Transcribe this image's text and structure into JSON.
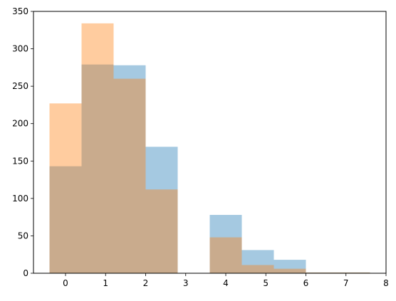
{
  "chart_data": {
    "type": "bar",
    "subtype": "overlaid-histogram",
    "title": "",
    "xlabel": "",
    "ylabel": "",
    "xlim": [
      -0.8,
      8
    ],
    "ylim": [
      0,
      350
    ],
    "xticks": [
      0,
      1,
      2,
      3,
      4,
      5,
      6,
      7,
      8
    ],
    "yticks": [
      0,
      50,
      100,
      150,
      200,
      250,
      300,
      350
    ],
    "grid": false,
    "legend": "none",
    "series": [
      {
        "color": "#1f77b4",
        "alpha": 0.4,
        "bins": [
          {
            "x0": -0.4,
            "x1": 0.4,
            "value": 143
          },
          {
            "x0": 0.4,
            "x1": 1.2,
            "value": 279
          },
          {
            "x0": 1.2,
            "x1": 2.0,
            "value": 278
          },
          {
            "x0": 2.0,
            "x1": 2.8,
            "value": 169
          },
          {
            "x0": 2.8,
            "x1": 3.6,
            "value": 0
          },
          {
            "x0": 3.6,
            "x1": 4.4,
            "value": 78
          },
          {
            "x0": 4.4,
            "x1": 5.2,
            "value": 31
          },
          {
            "x0": 5.2,
            "x1": 6.0,
            "value": 18
          },
          {
            "x0": 6.0,
            "x1": 6.8,
            "value": 1
          },
          {
            "x0": 6.8,
            "x1": 7.6,
            "value": 1
          }
        ]
      },
      {
        "color": "#ff7f0e",
        "alpha": 0.4,
        "bins": [
          {
            "x0": -0.4,
            "x1": 0.4,
            "value": 227
          },
          {
            "x0": 0.4,
            "x1": 1.2,
            "value": 334
          },
          {
            "x0": 1.2,
            "x1": 2.0,
            "value": 260
          },
          {
            "x0": 2.0,
            "x1": 2.8,
            "value": 112
          },
          {
            "x0": 2.8,
            "x1": 3.6,
            "value": 0
          },
          {
            "x0": 3.6,
            "x1": 4.4,
            "value": 48
          },
          {
            "x0": 4.4,
            "x1": 5.2,
            "value": 11
          },
          {
            "x0": 5.2,
            "x1": 6.0,
            "value": 6
          },
          {
            "x0": 6.0,
            "x1": 6.8,
            "value": 1
          },
          {
            "x0": 6.8,
            "x1": 7.6,
            "value": 1
          }
        ]
      }
    ]
  }
}
